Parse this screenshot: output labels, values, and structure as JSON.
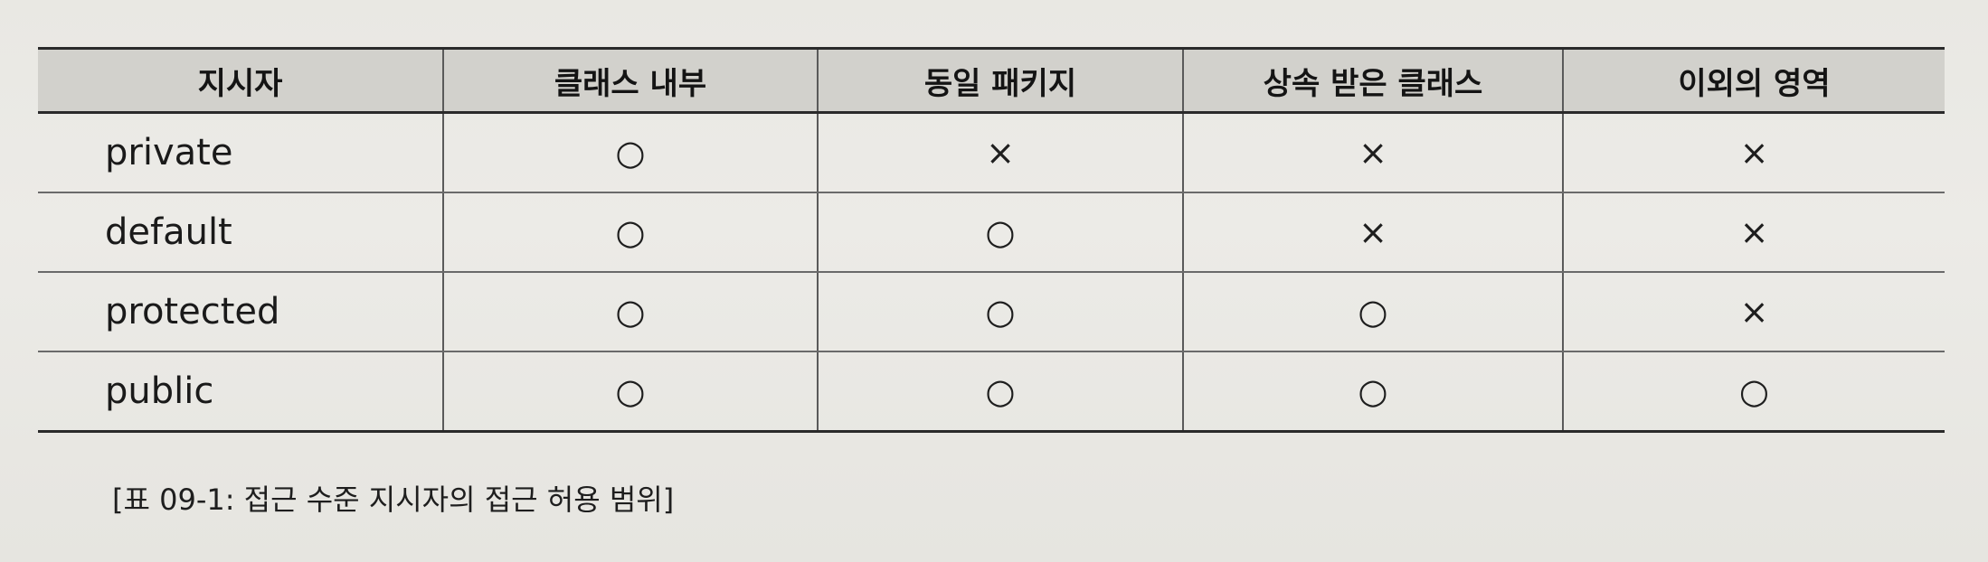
{
  "table": {
    "headers": [
      "지시자",
      "클래스 내부",
      "동일 패키지",
      "상속 받은 클래스",
      "이외의 영역"
    ],
    "rows": [
      {
        "name": "private",
        "cells": [
          "○",
          "×",
          "×",
          "×"
        ]
      },
      {
        "name": "default",
        "cells": [
          "○",
          "○",
          "×",
          "×"
        ]
      },
      {
        "name": "protected",
        "cells": [
          "○",
          "○",
          "○",
          "×"
        ]
      },
      {
        "name": "public",
        "cells": [
          "○",
          "○",
          "○",
          "○"
        ]
      }
    ]
  },
  "caption": "[표 09-1: 접근 수준 지시자의 접근 허용 범위]"
}
